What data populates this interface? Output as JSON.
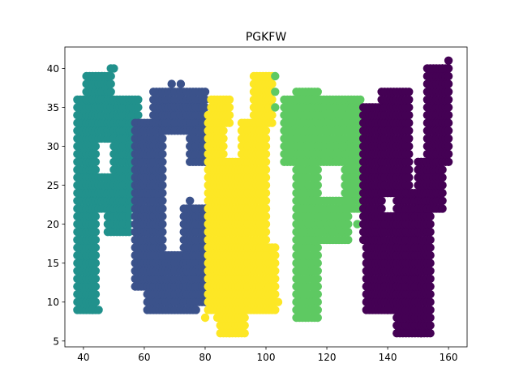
{
  "chart_data": {
    "type": "scatter",
    "title": "PGKFW",
    "xlabel": "",
    "ylabel": "",
    "xlim": [
      33.9,
      166.1
    ],
    "ylim": [
      4.25,
      42.75
    ],
    "xticks": [
      40,
      60,
      80,
      100,
      120,
      140,
      160
    ],
    "yticks": [
      5,
      10,
      15,
      20,
      25,
      30,
      35,
      40
    ],
    "grid": false,
    "legend": "none",
    "marker_size": 1.0,
    "series": [
      {
        "color": "#21918c",
        "regions": [
          {
            "x": [
              38,
              44
            ],
            "y": [
              9,
              36
            ]
          },
          {
            "x": [
              41,
              49
            ],
            "y": [
              36,
              39
            ]
          },
          {
            "x": [
              44,
              58
            ],
            "y": [
              31,
              36
            ]
          },
          {
            "x": [
              50,
              58
            ],
            "y": [
              24,
              31
            ]
          },
          {
            "x": [
              44,
              58
            ],
            "y": [
              22,
              26
            ]
          },
          {
            "x": [
              48,
              55
            ],
            "y": [
              19,
              22
            ]
          }
        ],
        "points": [
          [
            49,
            40
          ],
          [
            50,
            40
          ],
          [
            43,
            9
          ],
          [
            45,
            9
          ]
        ]
      },
      {
        "color": "#3b528b",
        "regions": [
          {
            "x": [
              57,
              66
            ],
            "y": [
              12,
              33
            ]
          },
          {
            "x": [
              61,
              77
            ],
            "y": [
              9,
              16
            ]
          },
          {
            "x": [
              63,
              80
            ],
            "y": [
              33,
              37
            ]
          },
          {
            "x": [
              66,
              79
            ],
            "y": [
              32,
              35
            ]
          },
          {
            "x": [
              75,
              80
            ],
            "y": [
              28,
              32
            ]
          },
          {
            "x": [
              73,
              80
            ],
            "y": [
              10,
              22
            ]
          }
        ],
        "points": [
          [
            69,
            38
          ],
          [
            72,
            38
          ],
          [
            75,
            23
          ]
        ]
      },
      {
        "color": "#fde725",
        "regions": [
          {
            "x": [
              81,
              86
            ],
            "y": [
              9,
              34
            ]
          },
          {
            "x": [
              82,
              88
            ],
            "y": [
              33,
              36
            ]
          },
          {
            "x": [
              85,
              93
            ],
            "y": [
              6,
              28
            ]
          },
          {
            "x": [
              88,
              103
            ],
            "y": [
              9,
              17
            ]
          },
          {
            "x": [
              92,
              100
            ],
            "y": [
              16,
              33
            ]
          },
          {
            "x": [
              96,
              102
            ],
            "y": [
              33,
              39
            ]
          }
        ],
        "points": [
          [
            80,
            8
          ],
          [
            84,
            8
          ],
          [
            88,
            6
          ],
          [
            92,
            7
          ],
          [
            104,
            10
          ],
          [
            97,
            37
          ]
        ]
      },
      {
        "color": "#5ec962",
        "regions": [
          {
            "x": [
              110,
              117
            ],
            "y": [
              8,
              37
            ]
          },
          {
            "x": [
              106,
              131
            ],
            "y": [
              28,
              36
            ]
          },
          {
            "x": [
              126,
              132
            ],
            "y": [
              22,
              30
            ]
          },
          {
            "x": [
              112,
              127
            ],
            "y": [
              18,
              23
            ]
          }
        ],
        "points": [
          [
            103,
            39
          ],
          [
            103,
            37
          ],
          [
            103,
            35
          ],
          [
            122,
            19
          ],
          [
            130,
            20
          ],
          [
            134,
            23
          ]
        ]
      },
      {
        "color": "#440154",
        "regions": [
          {
            "x": [
              132,
              138
            ],
            "y": [
              18,
              35
            ]
          },
          {
            "x": [
              133,
              150
            ],
            "y": [
              9,
              21
            ]
          },
          {
            "x": [
              138,
              147
            ],
            "y": [
              24,
              37
            ]
          },
          {
            "x": [
              143,
              154
            ],
            "y": [
              6,
              24
            ]
          },
          {
            "x": [
              150,
              158
            ],
            "y": [
              22,
              28
            ]
          },
          {
            "x": [
              153,
              160
            ],
            "y": [
              28,
              40
            ]
          }
        ],
        "points": [
          [
            160,
            41
          ],
          [
            158,
            40
          ],
          [
            151,
            6
          ],
          [
            140,
            9
          ]
        ]
      }
    ]
  }
}
